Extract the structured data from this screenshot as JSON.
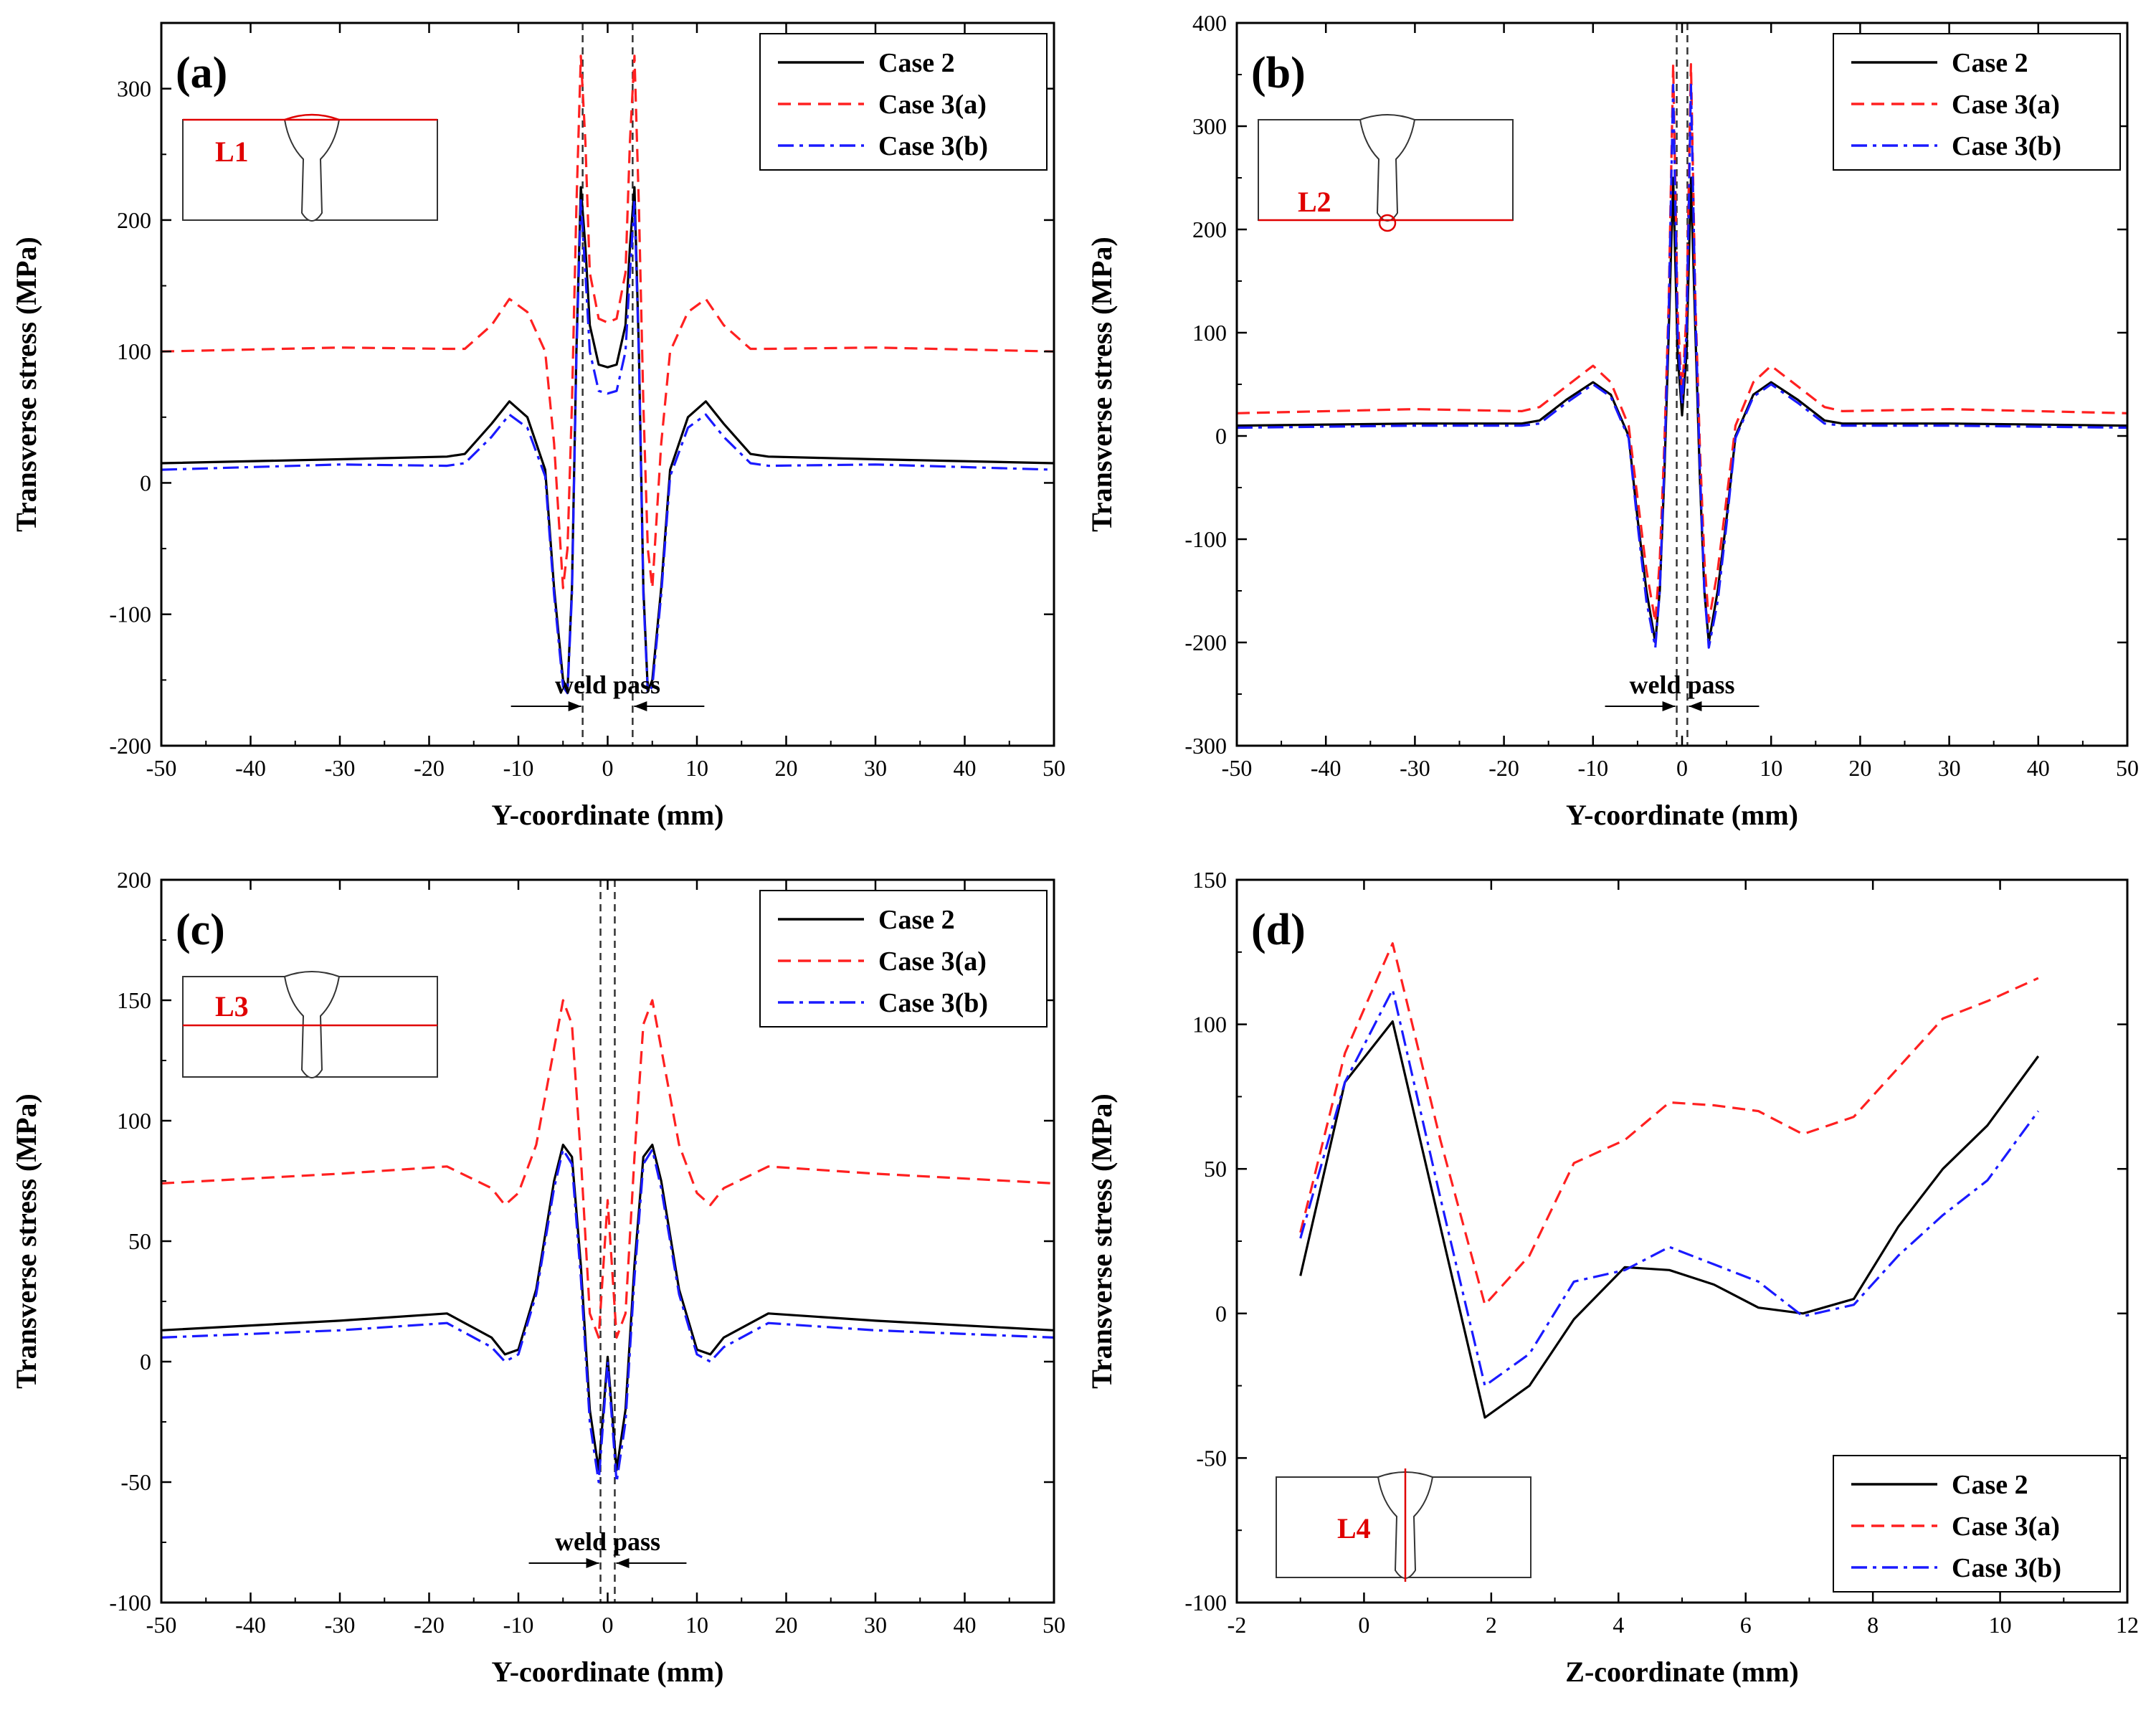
{
  "colors": {
    "case2": "#000000",
    "case3a": "#ff2020",
    "case3b": "#1a1aff",
    "inset_line": "#e00000"
  },
  "legend_labels": {
    "case2": "Case 2",
    "case3a": "Case 3(a)",
    "case3b": "Case 3(b)"
  },
  "chart_data": [
    {
      "type": "line",
      "panel_label": "(a)",
      "inset_label": "L1",
      "xlabel": "Y-coordinate (mm)",
      "ylabel": "Transverse stress (MPa)",
      "xlim": [
        -50,
        50
      ],
      "ylim": [
        -200,
        350
      ],
      "xticks": [
        -50,
        -40,
        -30,
        -20,
        -10,
        0,
        10,
        20,
        30,
        40,
        50
      ],
      "yticks": [
        -200,
        -100,
        0,
        100,
        200,
        300
      ],
      "legend_position": "top-right",
      "annotation": "weld pass",
      "weld_lines": [
        -2.8,
        2.8
      ],
      "series": [
        {
          "name": "Case 2",
          "key": "case2",
          "x": [
            -50,
            -30,
            -18,
            -16,
            -13,
            -11,
            -9,
            -7,
            -6,
            -5,
            -4.5,
            -4,
            -3.5,
            -3,
            -2.5,
            -2,
            -1,
            0,
            1,
            2,
            2.5,
            3,
            3.5,
            4,
            4.5,
            5,
            6,
            7,
            9,
            11,
            13,
            16,
            18,
            30,
            50
          ],
          "y": [
            15,
            18,
            20,
            22,
            45,
            62,
            50,
            10,
            -80,
            -150,
            -158,
            -80,
            100,
            225,
            180,
            120,
            90,
            88,
            90,
            120,
            180,
            225,
            100,
            -80,
            -158,
            -150,
            -80,
            10,
            50,
            62,
            45,
            22,
            20,
            18,
            15
          ]
        },
        {
          "name": "Case 3(a)",
          "key": "case3a",
          "x": [
            -50,
            -30,
            -18,
            -16,
            -13,
            -11,
            -9,
            -7,
            -6,
            -5,
            -4.5,
            -4,
            -3.5,
            -3,
            -2.5,
            -2,
            -1,
            0,
            1,
            2,
            2.5,
            3,
            3.5,
            4,
            4.5,
            5,
            6,
            7,
            9,
            11,
            13,
            16,
            18,
            30,
            50
          ],
          "y": [
            100,
            103,
            102,
            102,
            120,
            140,
            130,
            100,
            30,
            -80,
            -50,
            60,
            210,
            325,
            260,
            160,
            125,
            122,
            125,
            160,
            260,
            325,
            210,
            60,
            -50,
            -80,
            30,
            100,
            130,
            140,
            120,
            102,
            102,
            103,
            100
          ]
        },
        {
          "name": "Case 3(b)",
          "key": "case3b",
          "x": [
            -50,
            -30,
            -18,
            -16,
            -13,
            -11,
            -9,
            -7,
            -6,
            -5,
            -4.5,
            -4,
            -3.5,
            -3,
            -2.5,
            -2,
            -1,
            0,
            1,
            2,
            2.5,
            3,
            3.5,
            4,
            4.5,
            5,
            6,
            7,
            9,
            11,
            13,
            16,
            18,
            30,
            50
          ],
          "y": [
            10,
            14,
            13,
            15,
            35,
            52,
            42,
            5,
            -85,
            -155,
            -160,
            -85,
            95,
            215,
            160,
            100,
            70,
            68,
            70,
            100,
            160,
            215,
            95,
            -85,
            -160,
            -155,
            -85,
            5,
            42,
            52,
            35,
            15,
            13,
            14,
            10
          ]
        }
      ]
    },
    {
      "type": "line",
      "panel_label": "(b)",
      "inset_label": "L2",
      "xlabel": "Y-coordinate (mm)",
      "ylabel": "Transverse stress (MPa)",
      "xlim": [
        -50,
        50
      ],
      "ylim": [
        -300,
        400
      ],
      "xticks": [
        -50,
        -40,
        -30,
        -20,
        -10,
        0,
        10,
        20,
        30,
        40,
        50
      ],
      "yticks": [
        -300,
        -200,
        -100,
        0,
        100,
        200,
        300,
        400
      ],
      "legend_position": "top-right",
      "annotation": "weld pass",
      "weld_lines": [
        -0.6,
        0.6
      ],
      "series": [
        {
          "name": "Case 2",
          "key": "case2",
          "x": [
            -50,
            -30,
            -18,
            -16,
            -13,
            -10,
            -8,
            -6,
            -5,
            -4,
            -3,
            -2.5,
            -2,
            -1.5,
            -1,
            -0.5,
            0,
            0.5,
            1,
            1.5,
            2,
            2.5,
            3,
            4,
            5,
            6,
            8,
            10,
            13,
            16,
            18,
            30,
            50
          ],
          "y": [
            10,
            12,
            12,
            15,
            35,
            52,
            40,
            0,
            -80,
            -150,
            -200,
            -150,
            -40,
            100,
            250,
            80,
            20,
            80,
            250,
            100,
            -40,
            -150,
            -200,
            -150,
            -80,
            0,
            40,
            52,
            35,
            15,
            12,
            12,
            10
          ]
        },
        {
          "name": "Case 3(a)",
          "key": "case3a",
          "x": [
            -50,
            -30,
            -18,
            -16,
            -13,
            -10,
            -8,
            -6,
            -5,
            -4,
            -3,
            -2.5,
            -2,
            -1.5,
            -1,
            -0.5,
            0,
            0.5,
            1,
            1.5,
            2,
            2.5,
            3,
            4,
            5,
            6,
            8,
            10,
            13,
            16,
            18,
            30,
            50
          ],
          "y": [
            22,
            26,
            24,
            28,
            48,
            68,
            52,
            10,
            -60,
            -130,
            -180,
            -120,
            -10,
            130,
            360,
            120,
            40,
            120,
            360,
            130,
            -10,
            -120,
            -180,
            -130,
            -60,
            10,
            52,
            68,
            48,
            28,
            24,
            26,
            22
          ]
        },
        {
          "name": "Case 3(b)",
          "key": "case3b",
          "x": [
            -50,
            -30,
            -18,
            -16,
            -13,
            -10,
            -8,
            -6,
            -5,
            -4,
            -3,
            -2.5,
            -2,
            -1.5,
            -1,
            -0.5,
            0,
            0.5,
            1,
            1.5,
            2,
            2.5,
            3,
            4,
            5,
            6,
            8,
            10,
            13,
            16,
            18,
            30,
            50
          ],
          "y": [
            8,
            10,
            10,
            12,
            32,
            50,
            38,
            -2,
            -85,
            -160,
            -205,
            -150,
            -30,
            120,
            340,
            100,
            30,
            100,
            340,
            120,
            -30,
            -150,
            -205,
            -160,
            -85,
            -2,
            38,
            50,
            32,
            12,
            10,
            10,
            8
          ]
        }
      ]
    },
    {
      "type": "line",
      "panel_label": "(c)",
      "inset_label": "L3",
      "xlabel": "Y-coordinate (mm)",
      "ylabel": "Transverse stress (MPa)",
      "xlim": [
        -50,
        50
      ],
      "ylim": [
        -100,
        200
      ],
      "xticks": [
        -50,
        -40,
        -30,
        -20,
        -10,
        0,
        10,
        20,
        30,
        40,
        50
      ],
      "yticks": [
        -100,
        -50,
        0,
        50,
        100,
        150,
        200
      ],
      "legend_position": "top-right",
      "annotation": "weld pass",
      "weld_lines": [
        -0.8,
        0.8
      ],
      "series": [
        {
          "name": "Case 2",
          "key": "case2",
          "x": [
            -50,
            -30,
            -18,
            -13,
            -11.5,
            -10,
            -8,
            -6,
            -5,
            -4,
            -3,
            -2,
            -1,
            0,
            1,
            2,
            3,
            4,
            5,
            6,
            8,
            10,
            11.5,
            13,
            18,
            30,
            50
          ],
          "y": [
            13,
            17,
            20,
            10,
            3,
            5,
            30,
            75,
            90,
            85,
            40,
            -20,
            -45,
            2,
            -45,
            -20,
            40,
            85,
            90,
            75,
            30,
            5,
            3,
            10,
            20,
            17,
            13
          ]
        },
        {
          "name": "Case 3(a)",
          "key": "case3a",
          "x": [
            -50,
            -30,
            -18,
            -13,
            -11.5,
            -10,
            -8,
            -6,
            -5,
            -4,
            -3,
            -2,
            -1,
            0,
            1,
            2,
            3,
            4,
            5,
            6,
            8,
            10,
            11.5,
            13,
            18,
            30,
            50
          ],
          "y": [
            74,
            78,
            81,
            72,
            65,
            70,
            90,
            130,
            150,
            140,
            85,
            20,
            10,
            67,
            10,
            20,
            85,
            140,
            150,
            130,
            90,
            70,
            65,
            72,
            81,
            78,
            74
          ]
        },
        {
          "name": "Case 3(b)",
          "key": "case3b",
          "x": [
            -50,
            -30,
            -18,
            -13,
            -11.5,
            -10,
            -8,
            -6,
            -5,
            -4,
            -3,
            -2,
            -1,
            0,
            1,
            2,
            3,
            4,
            5,
            6,
            8,
            10,
            11.5,
            13,
            18,
            30,
            50
          ],
          "y": [
            10,
            13,
            16,
            6,
            0,
            3,
            28,
            72,
            88,
            82,
            35,
            -25,
            -50,
            0,
            -50,
            -25,
            35,
            82,
            88,
            72,
            28,
            3,
            0,
            6,
            16,
            13,
            10
          ]
        }
      ]
    },
    {
      "type": "line",
      "panel_label": "(d)",
      "inset_label": "L4",
      "xlabel": "Z-coordinate (mm)",
      "ylabel": "Transverse stress (MPa)",
      "xlim": [
        -2,
        12
      ],
      "ylim": [
        -100,
        150
      ],
      "xticks": [
        -2,
        0,
        2,
        4,
        6,
        8,
        10,
        12
      ],
      "yticks": [
        -100,
        -50,
        0,
        50,
        100,
        150
      ],
      "legend_position": "bottom-right",
      "series": [
        {
          "name": "Case 2",
          "key": "case2",
          "x": [
            -1.0,
            -0.3,
            0.45,
            1.2,
            1.9,
            2.6,
            3.3,
            4.1,
            4.8,
            5.5,
            6.2,
            6.9,
            7.7,
            8.4,
            9.1,
            9.8,
            10.6
          ],
          "y": [
            13,
            80,
            101,
            30,
            -36,
            -25,
            -2,
            16,
            15,
            10,
            2,
            0,
            5,
            30,
            50,
            65,
            89
          ]
        },
        {
          "name": "Case 3(a)",
          "key": "case3a",
          "x": [
            -1.0,
            -0.3,
            0.45,
            1.2,
            1.9,
            2.6,
            3.3,
            4.1,
            4.8,
            5.5,
            6.2,
            6.9,
            7.7,
            8.4,
            9.1,
            9.8,
            10.6
          ],
          "y": [
            28,
            90,
            128,
            60,
            3,
            20,
            52,
            60,
            73,
            72,
            70,
            62,
            68,
            85,
            102,
            108,
            116
          ]
        },
        {
          "name": "Case 3(b)",
          "key": "case3b",
          "x": [
            -1.0,
            -0.3,
            0.45,
            1.2,
            1.9,
            2.6,
            3.3,
            4.1,
            4.8,
            5.5,
            6.2,
            6.9,
            7.7,
            8.4,
            9.1,
            9.8,
            10.6
          ],
          "y": [
            26,
            80,
            112,
            40,
            -25,
            -14,
            11,
            15,
            23,
            17,
            11,
            -1,
            3,
            20,
            34,
            46,
            70
          ]
        }
      ]
    }
  ]
}
